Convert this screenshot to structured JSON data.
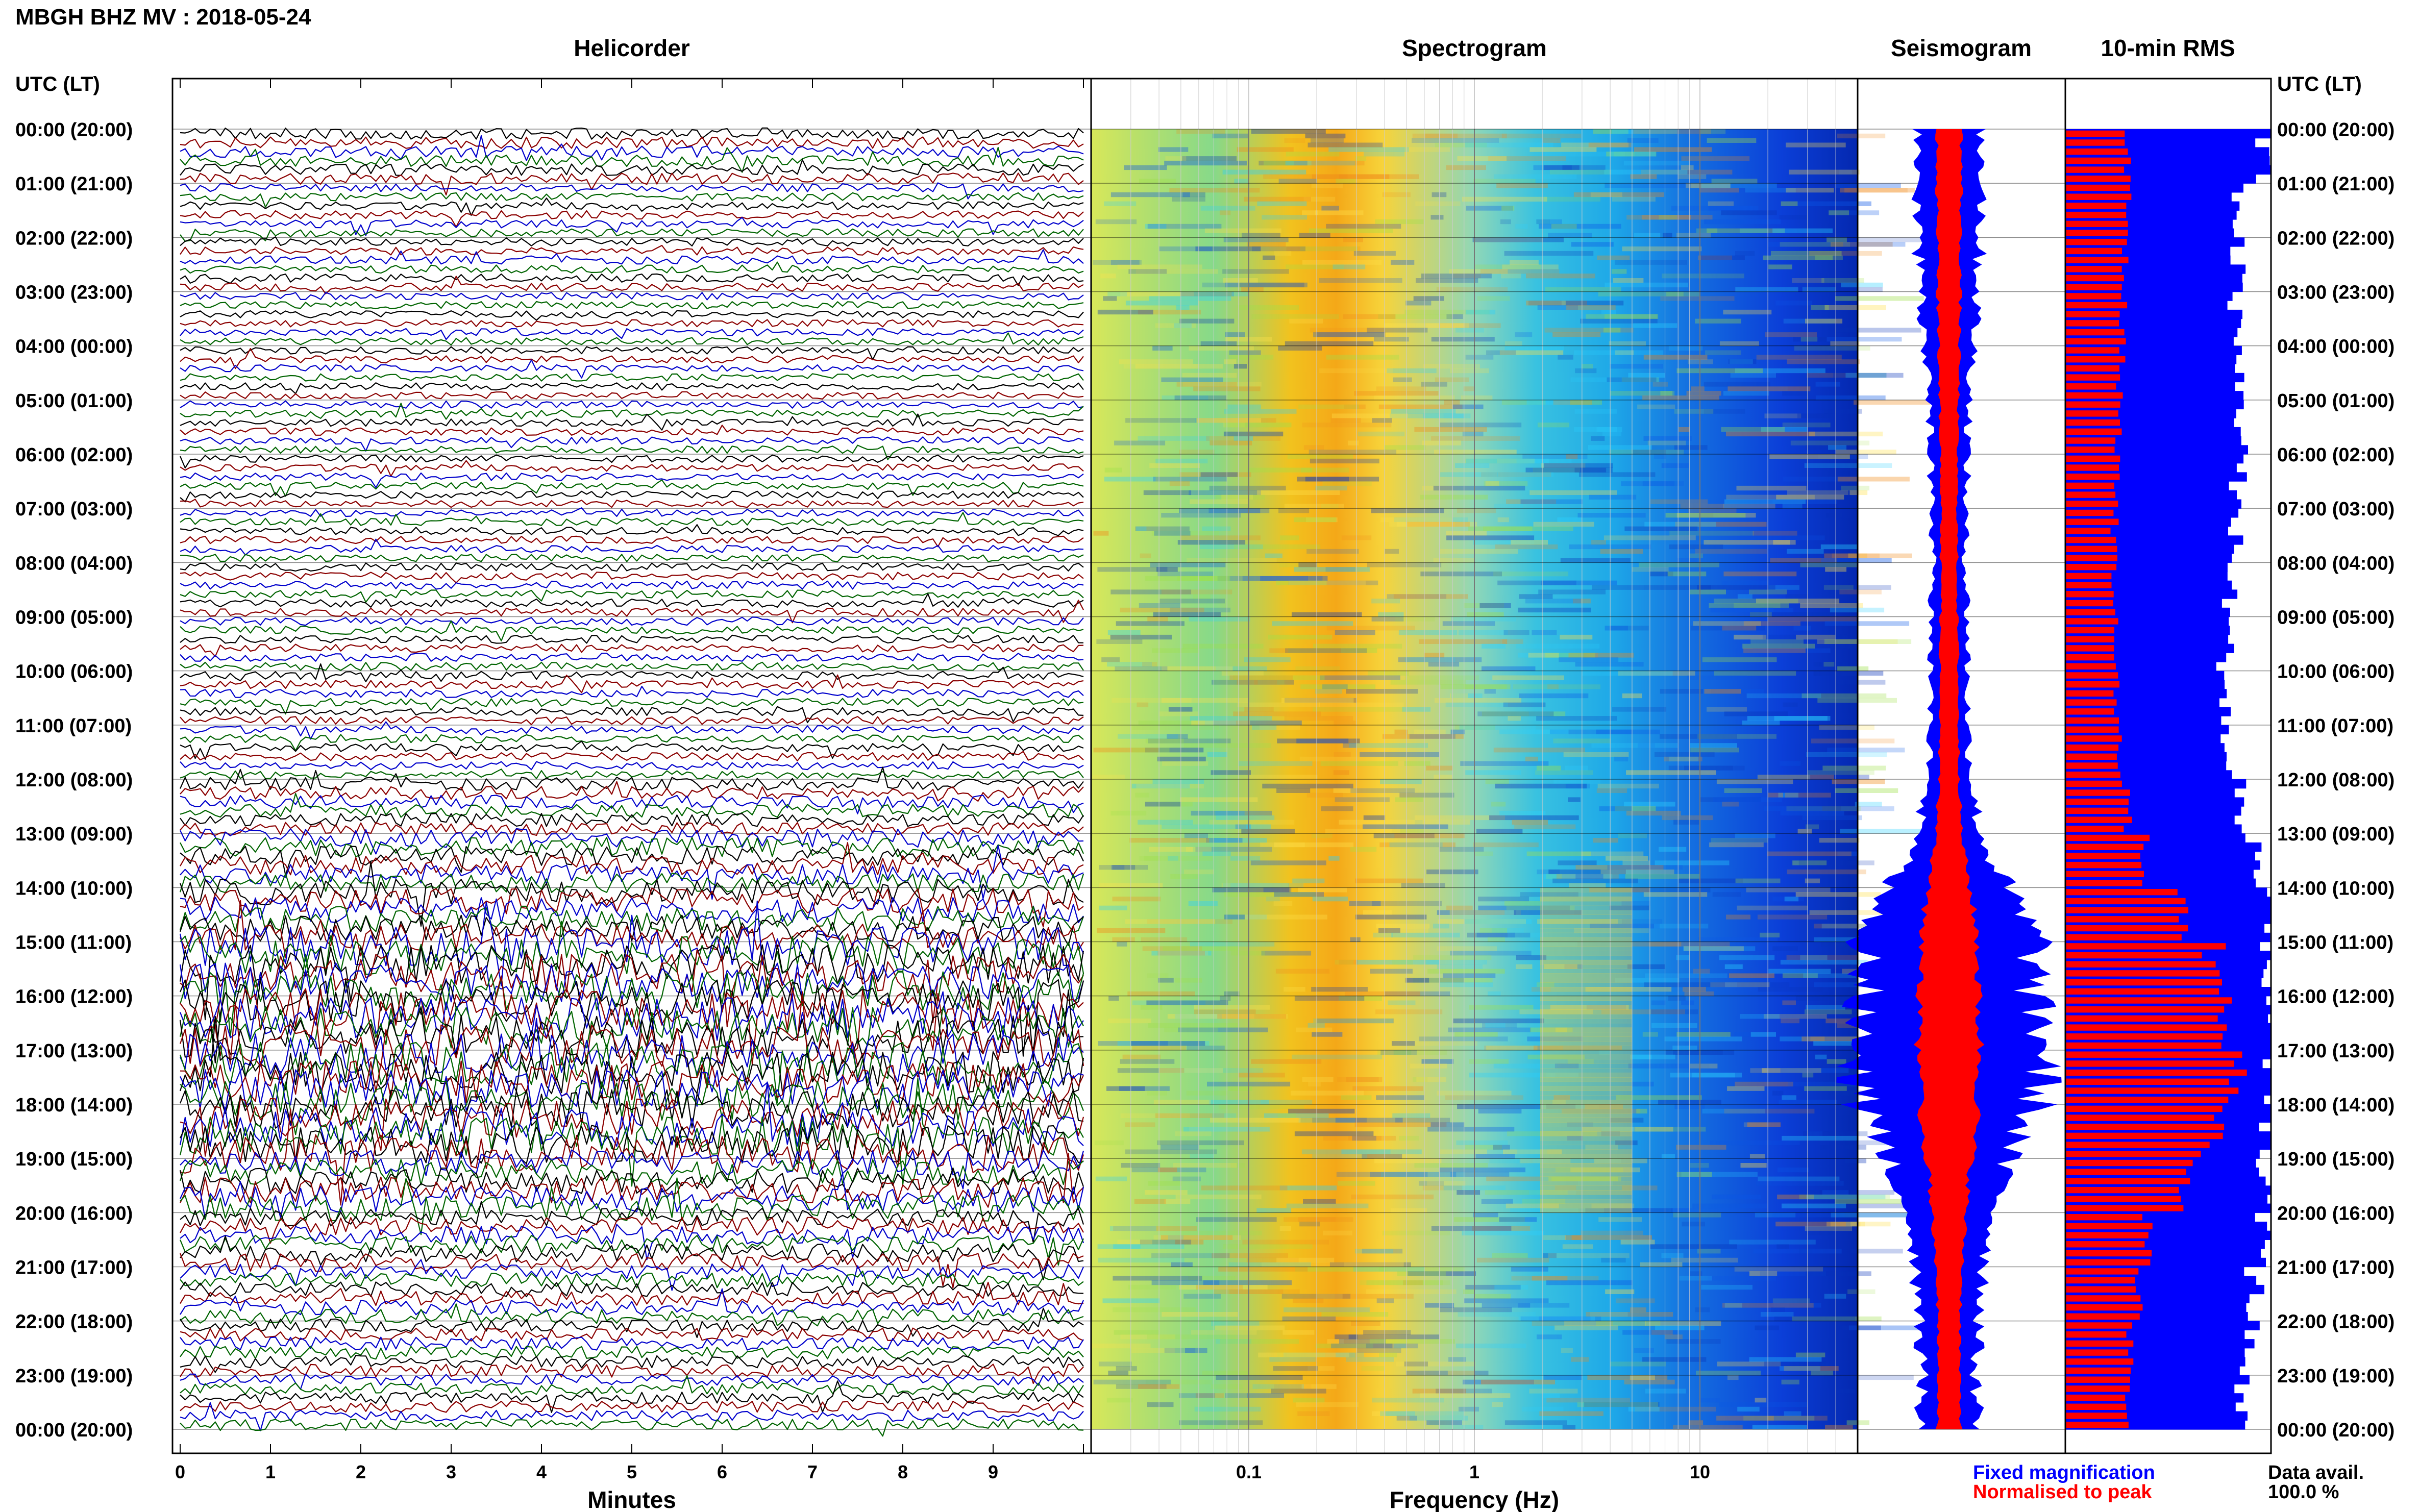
{
  "figure": {
    "station_title": "MBGH BHZ MV : 2018-05-24",
    "utc_lt_label": "UTC (LT)",
    "data_avail_label": "Data avail.",
    "data_avail_value": "100.0 %",
    "legend_fixed": "Fixed magnification",
    "legend_normalised": "Normalised to peak",
    "colors": {
      "helicorder_traces": [
        "#000000",
        "#8b0000",
        "#0000cc",
        "#006400"
      ],
      "fixed_magnification": "#0000ff",
      "normalised_to_peak": "#ff0000"
    }
  },
  "chart_data": [
    {
      "type": "line",
      "panel": "helicorder",
      "title": "Helicorder",
      "xlabel": "Minutes",
      "ylabel": "",
      "xlim": [
        0,
        10
      ],
      "x_ticks": [
        "0",
        "1",
        "2",
        "3",
        "4",
        "5",
        "6",
        "7",
        "8",
        "9"
      ],
      "y_ticks": [
        "00:00 (20:00)",
        "01:00 (21:00)",
        "02:00 (22:00)",
        "03:00 (23:00)",
        "04:00 (00:00)",
        "05:00 (01:00)",
        "06:00 (02:00)",
        "07:00 (03:00)",
        "08:00 (04:00)",
        "09:00 (05:00)",
        "10:00 (06:00)",
        "11:00 (07:00)",
        "12:00 (08:00)",
        "13:00 (09:00)",
        "14:00 (10:00)",
        "15:00 (11:00)",
        "16:00 (12:00)",
        "17:00 (13:00)",
        "18:00 (14:00)",
        "19:00 (15:00)",
        "20:00 (16:00)",
        "21:00 (17:00)",
        "22:00 (18:00)",
        "23:00 (19:00)",
        "00:00 (20:00)"
      ],
      "trace_rows": 144,
      "trace_color_cycle": [
        "black",
        "darkred",
        "blue",
        "green"
      ],
      "hourly_amplitude": [
        0.7,
        0.5,
        0.5,
        0.45,
        0.45,
        0.45,
        0.45,
        0.45,
        0.5,
        0.5,
        0.5,
        0.5,
        0.8,
        1.2,
        1.6,
        2.4,
        2.6,
        2.6,
        2.4,
        1.6,
        1.1,
        0.9,
        0.8,
        0.7
      ]
    },
    {
      "type": "heatmap",
      "panel": "spectrogram",
      "title": "Spectrogram",
      "xlabel": "Frequency (Hz)",
      "x_scale": "log",
      "xlim": [
        0.02,
        50
      ],
      "x_ticks": [
        "0.1",
        "1",
        "10"
      ],
      "time_range_hours": [
        0,
        24
      ],
      "peak_band_hz": [
        0.2,
        0.5
      ],
      "low_energy_above_hz": 10
    },
    {
      "type": "area",
      "panel": "seismogram",
      "title": "Seismogram",
      "series": [
        {
          "name": "Fixed magnification",
          "hourly_half_width": [
            0.3,
            0.35,
            0.3,
            0.28,
            0.24,
            0.2,
            0.18,
            0.16,
            0.16,
            0.18,
            0.18,
            0.18,
            0.22,
            0.3,
            0.55,
            0.85,
            0.8,
            0.95,
            0.85,
            0.55,
            0.45,
            0.35,
            0.3,
            0.25
          ]
        },
        {
          "name": "Normalised to peak",
          "hourly_half_width": [
            0.12,
            0.12,
            0.11,
            0.11,
            0.1,
            0.09,
            0.08,
            0.08,
            0.08,
            0.08,
            0.09,
            0.09,
            0.1,
            0.12,
            0.2,
            0.28,
            0.28,
            0.3,
            0.28,
            0.22,
            0.16,
            0.13,
            0.11,
            0.1
          ]
        }
      ]
    },
    {
      "type": "bar",
      "panel": "rms",
      "title": "10-min RMS",
      "bars_per_hour": 6,
      "series": [
        {
          "name": "Fixed magnification",
          "hourly_level": [
            0.95,
            0.85,
            0.83,
            0.82,
            0.84,
            0.86,
            0.84,
            0.82,
            0.8,
            0.78,
            0.78,
            0.78,
            0.85,
            0.93,
            0.98,
            1.0,
            1.0,
            1.0,
            1.0,
            0.98,
            0.96,
            0.92,
            0.9,
            0.85
          ]
        },
        {
          "name": "Normalised to peak",
          "hourly_level": [
            0.3,
            0.3,
            0.29,
            0.28,
            0.27,
            0.26,
            0.25,
            0.24,
            0.24,
            0.24,
            0.25,
            0.26,
            0.3,
            0.38,
            0.55,
            0.72,
            0.75,
            0.85,
            0.72,
            0.58,
            0.4,
            0.36,
            0.32,
            0.3
          ]
        }
      ]
    }
  ]
}
